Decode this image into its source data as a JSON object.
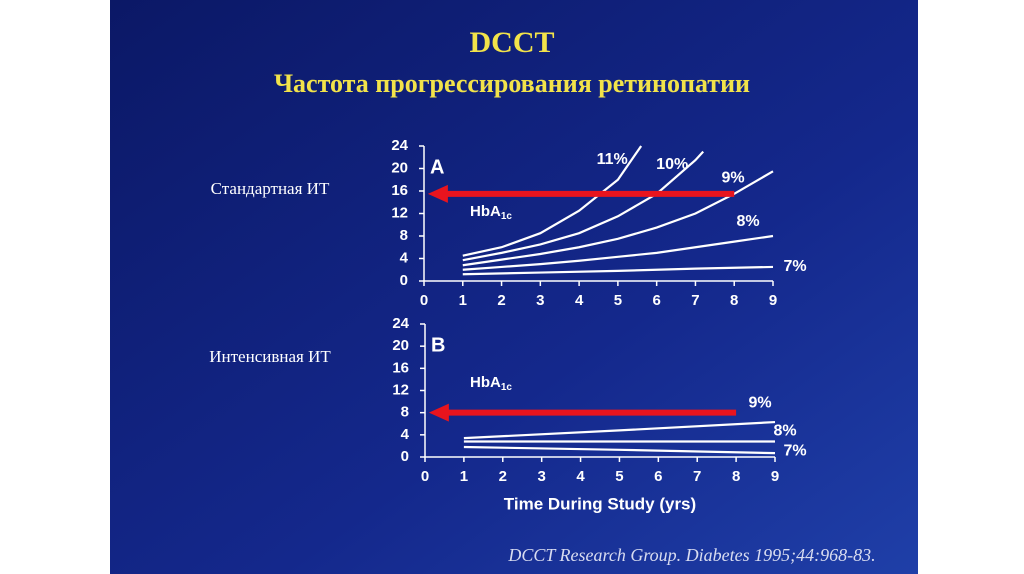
{
  "slide": {
    "title": "DCCT",
    "subtitle": "Частота прогрессирования ретинопатии",
    "citation": "DCCT Research Group. Diabetes 1995;44:968-83."
  },
  "chart_data": [
    {
      "type": "line",
      "title": "A",
      "label": "Стандартная ИТ",
      "annotation": {
        "text": "HbA",
        "subscript": "1c"
      },
      "arrow": {
        "y": 15.5,
        "x": [
          8,
          0.1
        ],
        "color": "#e8141e"
      },
      "xlim": [
        0,
        9
      ],
      "xticks": [
        0,
        1,
        2,
        3,
        4,
        5,
        6,
        7,
        8,
        9
      ],
      "ylim": [
        0,
        24
      ],
      "yticks": [
        0,
        4,
        8,
        12,
        16,
        20,
        24
      ],
      "series": [
        {
          "name": "11%",
          "color": "#ffffff",
          "x": [
            1,
            2,
            3,
            4,
            5,
            5.6
          ],
          "values": [
            4.5,
            6,
            8.5,
            12.5,
            18,
            24
          ]
        },
        {
          "name": "10%",
          "color": "#ffffff",
          "x": [
            1,
            2,
            3,
            4,
            5,
            6,
            7,
            7.2
          ],
          "values": [
            3.7,
            5,
            6.5,
            8.5,
            11.5,
            15.5,
            21.5,
            23
          ]
        },
        {
          "name": "9%",
          "color": "#ffffff",
          "x": [
            1,
            2,
            3,
            4,
            5,
            6,
            7,
            8,
            9
          ],
          "values": [
            2.8,
            3.8,
            4.8,
            6,
            7.5,
            9.5,
            12,
            15.5,
            19.5
          ]
        },
        {
          "name": "8%",
          "color": "#ffffff",
          "x": [
            1,
            2,
            3,
            4,
            5,
            6,
            7,
            8,
            9
          ],
          "values": [
            2,
            2.5,
            3,
            3.6,
            4.3,
            5,
            6,
            7,
            8
          ]
        },
        {
          "name": "7%",
          "color": "#ffffff",
          "x": [
            1,
            3,
            5,
            7,
            9
          ],
          "values": [
            1.2,
            1.5,
            1.8,
            2.2,
            2.5
          ]
        }
      ]
    },
    {
      "type": "line",
      "title": "B",
      "label": "Интенсивная ИТ",
      "xlabel": "Time During Study (yrs)",
      "annotation": {
        "text": "HbA",
        "subscript": "1c"
      },
      "arrow": {
        "y": 8,
        "x": [
          8,
          0.1
        ],
        "color": "#e8141e"
      },
      "xlim": [
        0,
        9
      ],
      "xticks": [
        0,
        1,
        2,
        3,
        4,
        5,
        6,
        7,
        8,
        9
      ],
      "ylim": [
        0,
        24
      ],
      "yticks": [
        0,
        4,
        8,
        12,
        16,
        20,
        24
      ],
      "series": [
        {
          "name": "9%",
          "color": "#ffffff",
          "x": [
            1,
            5,
            9
          ],
          "values": [
            3.4,
            4.8,
            6.3
          ]
        },
        {
          "name": "8%",
          "color": "#ffffff",
          "x": [
            1,
            5,
            9
          ],
          "values": [
            2.8,
            2.8,
            2.8
          ]
        },
        {
          "name": "7%",
          "color": "#ffffff",
          "x": [
            1,
            5,
            9
          ],
          "values": [
            1.8,
            1.3,
            0.7
          ]
        }
      ]
    }
  ]
}
